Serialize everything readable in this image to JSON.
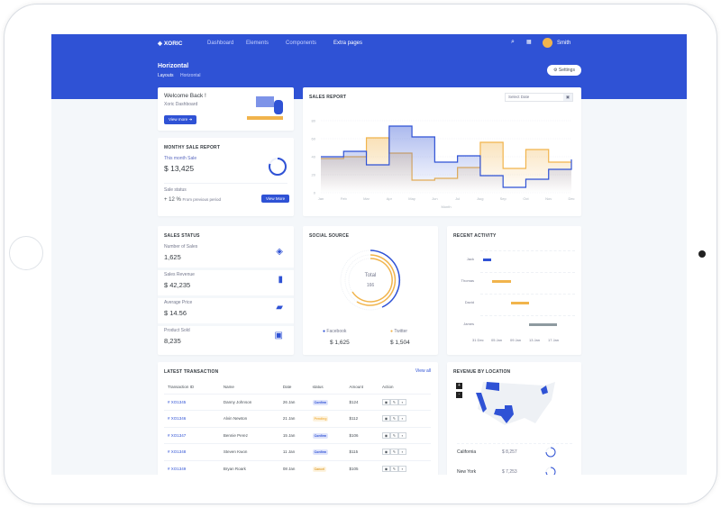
{
  "header": {
    "brand": "XORIC",
    "nav": [
      "Dashboard",
      "Elements",
      "Components",
      "Extra pages"
    ],
    "user": "Smith",
    "page_title": "Horizontal",
    "breadcrumb": [
      "Layouts",
      "Horizontal"
    ],
    "settings": "Settings"
  },
  "welcome": {
    "title": "Welcome Back !",
    "subtitle": "Xoric Dashboard",
    "button": "View more"
  },
  "monthly": {
    "title": "MONTHY SALE REPORT",
    "label": "This month Sale",
    "value": "$ 13,425",
    "status_label": "Sale status",
    "change": "+ 12 %",
    "change_text": "From previous period",
    "button": "View More",
    "progress": 0.8
  },
  "sales_report": {
    "title": "SALES REPORT",
    "date_placeholder": "Select Date"
  },
  "chart_data": {
    "type": "line",
    "step": true,
    "xlabel": "Month",
    "ylim": [
      0,
      80
    ],
    "yticks": [
      0,
      20,
      40,
      60,
      80
    ],
    "categories": [
      "Jan",
      "Feb",
      "Mar",
      "Apr",
      "May",
      "Jun",
      "Jul",
      "Aug",
      "Sep",
      "Oct",
      "Nov",
      "Dec"
    ],
    "series": [
      {
        "color": "#2f52d5",
        "values": [
          40,
          46,
          31,
          74,
          62,
          34,
          41,
          19,
          6,
          15,
          26,
          37
        ]
      },
      {
        "color": "#f1b44c",
        "values": [
          38,
          40,
          61,
          44,
          14,
          16,
          28,
          56,
          27,
          48,
          34,
          34
        ]
      }
    ]
  },
  "sales_status": {
    "title": "SALES STATUS",
    "items": [
      {
        "label": "Number of Sales",
        "value": "1,625",
        "icon": "layers-icon"
      },
      {
        "label": "Sales Revenue",
        "value": "$ 42,235",
        "icon": "bar-chart-icon"
      },
      {
        "label": "Average Price",
        "value": "$ 14.56",
        "icon": "ticket-icon"
      },
      {
        "label": "Product Sold",
        "value": "8,235",
        "icon": "box-icon"
      }
    ]
  },
  "social": {
    "title": "SOCIAL SOURCE",
    "total_label": "Total",
    "total": "166",
    "legend": [
      {
        "name": "Facebook",
        "value": "$ 1,625",
        "color": "#2f52d5"
      },
      {
        "name": "Twitter",
        "value": "$ 1,504",
        "color": "#f1b44c"
      }
    ]
  },
  "activity": {
    "title": "RECENT ACTIVITY",
    "people": [
      "Jack",
      "Thomas",
      "David",
      "James"
    ],
    "ticks": [
      "31 Dec",
      "05 Jan",
      "09 Jan",
      "13 Jan",
      "17 Jan"
    ]
  },
  "transactions": {
    "title": "LATEST TRANSACTION",
    "view_all": "View all",
    "columns": [
      "Transaction ID",
      "Name",
      "Date",
      "status",
      "Amount",
      "Action"
    ],
    "rows": [
      [
        "# XO1345",
        "Danny Johnson",
        "26 Jan",
        "Confirm",
        "$124"
      ],
      [
        "# XO1346",
        "Alvin Newton",
        "21 Jan",
        "Pending",
        "$112"
      ],
      [
        "# XO1347",
        "Bennie Perez",
        "15 Jan",
        "Confirm",
        "$106"
      ],
      [
        "# XO1348",
        "Steven Kwon",
        "11 Jan",
        "Confirm",
        "$115"
      ],
      [
        "# XO1349",
        "Bryan Roark",
        "08 Jan",
        "Cancel",
        "$105"
      ]
    ]
  },
  "location": {
    "title": "REVENUE BY LOCATION",
    "items": [
      {
        "name": "California",
        "value": "$ 8,257"
      },
      {
        "name": "New York",
        "value": "$ 7,253"
      }
    ]
  }
}
